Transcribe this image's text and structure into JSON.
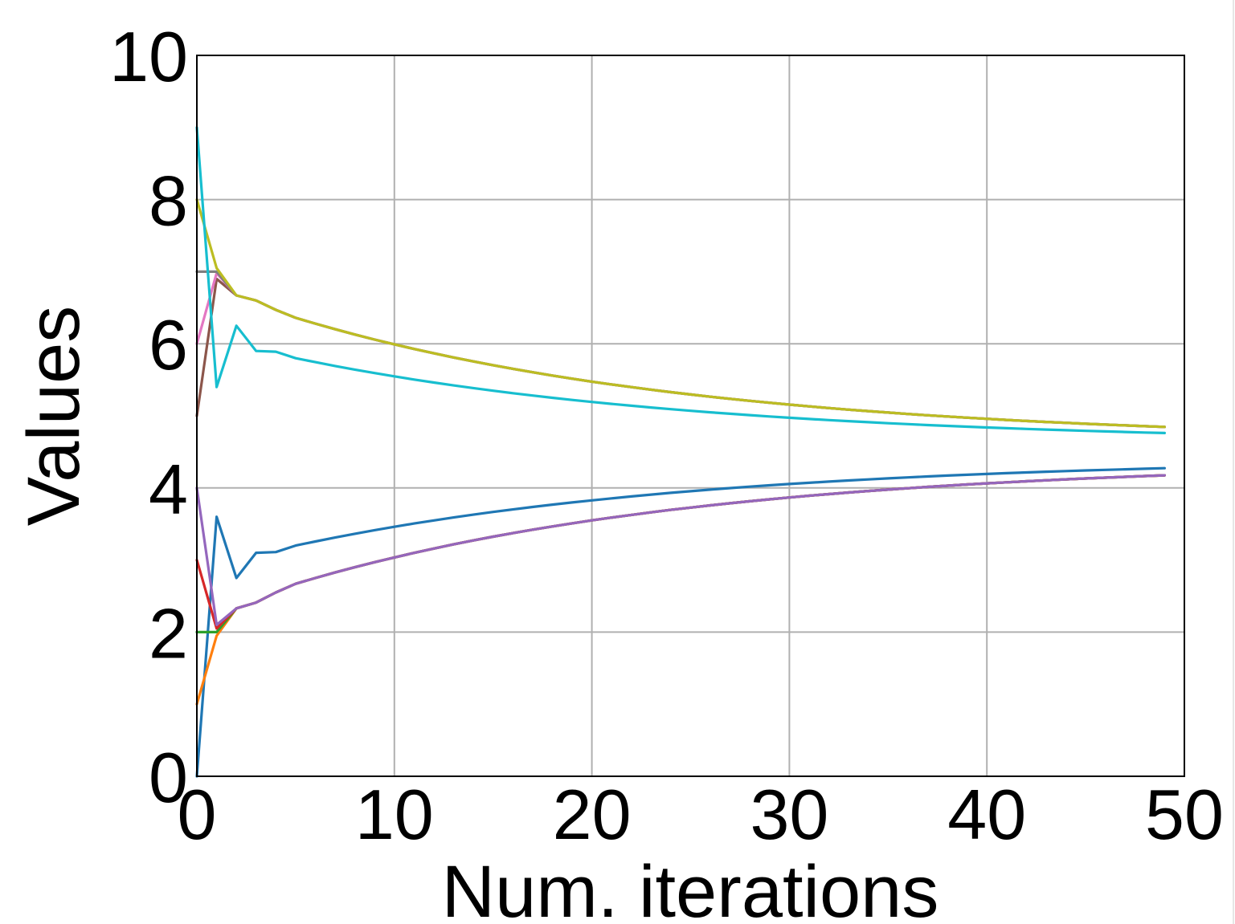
{
  "chart_data": {
    "type": "line",
    "xlabel": "Num. iterations",
    "ylabel": "Values",
    "xlim": [
      0,
      50
    ],
    "ylim": [
      0,
      10
    ],
    "xticks": [
      "0",
      "10",
      "20",
      "30",
      "40",
      "50"
    ],
    "yticks": [
      "0",
      "2",
      "4",
      "6",
      "8",
      "10"
    ],
    "grid": true,
    "legend": "none",
    "series": [
      {
        "color": "#1f77b4",
        "start": 0,
        "early": [
          3.6,
          2.75,
          3.1,
          3.11,
          3.2
        ],
        "final": 4.42
      },
      {
        "color": "#ff7f0e",
        "start": 1,
        "early": [
          1.95,
          2.33,
          2.41,
          2.55,
          2.67
        ],
        "final": 4.38
      },
      {
        "color": "#2ca02c",
        "start": 2,
        "early": [
          2.0,
          2.33,
          2.41,
          2.55,
          2.67
        ],
        "final": 4.38
      },
      {
        "color": "#d62728",
        "start": 3,
        "early": [
          2.05,
          2.33,
          2.41,
          2.55,
          2.67
        ],
        "final": 4.38
      },
      {
        "color": "#9467bd",
        "start": 4,
        "early": [
          2.1,
          2.33,
          2.41,
          2.55,
          2.67
        ],
        "final": 4.38
      },
      {
        "color": "#8c564b",
        "start": 5,
        "early": [
          6.9,
          6.67,
          6.6,
          6.47,
          6.36
        ],
        "final": 4.64
      },
      {
        "color": "#e377c2",
        "start": 6,
        "early": [
          6.98,
          6.67,
          6.6,
          6.47,
          6.36
        ],
        "final": 4.64
      },
      {
        "color": "#7f7f7f",
        "start": 7,
        "early": [
          7.0,
          6.67,
          6.6,
          6.47,
          6.36
        ],
        "final": 4.64
      },
      {
        "color": "#bcbd22",
        "start": 8,
        "early": [
          7.05,
          6.67,
          6.6,
          6.47,
          6.36
        ],
        "final": 4.64
      },
      {
        "color": "#17becf",
        "start": 9,
        "early": [
          5.4,
          6.25,
          5.9,
          5.89,
          5.8
        ],
        "final": 4.62
      }
    ]
  }
}
